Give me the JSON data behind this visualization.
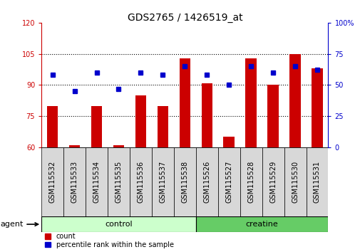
{
  "title": "GDS2765 / 1426519_at",
  "categories": [
    "GSM115532",
    "GSM115533",
    "GSM115534",
    "GSM115535",
    "GSM115536",
    "GSM115537",
    "GSM115538",
    "GSM115526",
    "GSM115527",
    "GSM115528",
    "GSM115529",
    "GSM115530",
    "GSM115531"
  ],
  "counts": [
    80,
    61,
    80,
    61,
    85,
    80,
    103,
    91,
    65,
    103,
    90,
    105,
    98
  ],
  "percentiles": [
    58,
    45,
    60,
    47,
    60,
    58,
    65,
    58,
    50,
    65,
    60,
    65,
    62
  ],
  "bar_color": "#cc0000",
  "dot_color": "#0000cc",
  "left_ylim": [
    60,
    120
  ],
  "right_ylim": [
    0,
    100
  ],
  "left_yticks": [
    60,
    75,
    90,
    105,
    120
  ],
  "right_yticks": [
    0,
    25,
    50,
    75,
    100
  ],
  "left_ylabel_color": "#cc0000",
  "right_ylabel_color": "#0000cc",
  "grid_yticks": [
    75,
    90,
    105
  ],
  "n_control": 7,
  "n_creatine": 6,
  "control_color": "#ccffcc",
  "creatine_color": "#66cc66",
  "control_label": "control",
  "creatine_label": "creatine",
  "agent_label": "agent",
  "legend_count_label": "count",
  "legend_pct_label": "percentile rank within the sample",
  "bar_width": 0.5,
  "figsize": [
    5.06,
    3.54
  ],
  "dpi": 100,
  "tick_label_fontsize": 7,
  "title_fontsize": 10
}
